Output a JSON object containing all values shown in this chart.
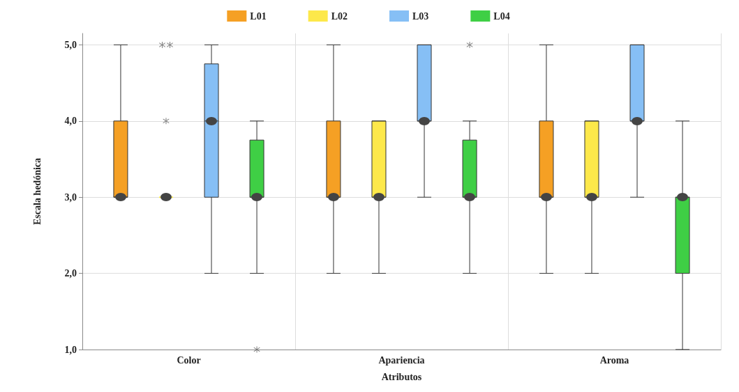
{
  "chart_data": {
    "type": "box",
    "xlabel": "Atributos",
    "ylabel": "Escala hedónica",
    "categories": [
      "Color",
      "Apariencia",
      "Aroma"
    ],
    "ylim": [
      1,
      5.15
    ],
    "yticks": [
      {
        "value": 1,
        "label": "1,0"
      },
      {
        "value": 2,
        "label": "2,0"
      },
      {
        "value": 3,
        "label": "3,0"
      },
      {
        "value": 4,
        "label": "4,0"
      },
      {
        "value": 5,
        "label": "5,0"
      }
    ],
    "grid": true,
    "legend": "top",
    "marker": "circle",
    "series": [
      {
        "name": "L01",
        "color": "#f5a024",
        "boxes": [
          {
            "low": 3,
            "q1": 3,
            "median": 3,
            "q3": 4,
            "high": 5
          },
          {
            "low": 2,
            "q1": 3,
            "median": 3,
            "q3": 4,
            "high": 5
          },
          {
            "low": 2,
            "q1": 3,
            "median": 3,
            "q3": 4,
            "high": 5
          }
        ]
      },
      {
        "name": "L02",
        "color": "#fde84a",
        "boxes": [
          {
            "low": 3,
            "q1": 3,
            "median": 3,
            "q3": 3,
            "high": 3,
            "outliers": [
              4,
              5,
              5
            ]
          },
          {
            "low": 2,
            "q1": 3,
            "median": 3,
            "q3": 4,
            "high": 4
          },
          {
            "low": 2,
            "q1": 3,
            "median": 3,
            "q3": 4,
            "high": 4
          }
        ]
      },
      {
        "name": "L03",
        "color": "#86bff5",
        "boxes": [
          {
            "low": 2,
            "q1": 3,
            "median": 4,
            "q3": 4.75,
            "high": 5
          },
          {
            "low": 3,
            "q1": 4,
            "median": 4,
            "q3": 5,
            "high": 5
          },
          {
            "low": 3,
            "q1": 4,
            "median": 4,
            "q3": 5,
            "high": 5
          }
        ]
      },
      {
        "name": "L04",
        "color": "#3fcf45",
        "boxes": [
          {
            "low": 2,
            "q1": 3,
            "median": 3,
            "q3": 3.75,
            "high": 4,
            "outliers": [
              1
            ]
          },
          {
            "low": 2,
            "q1": 3,
            "median": 3,
            "q3": 3.75,
            "high": 4,
            "outliers": [
              5
            ]
          },
          {
            "low": 1,
            "q1": 2,
            "median": 3,
            "q3": 3,
            "high": 4
          }
        ]
      }
    ]
  }
}
